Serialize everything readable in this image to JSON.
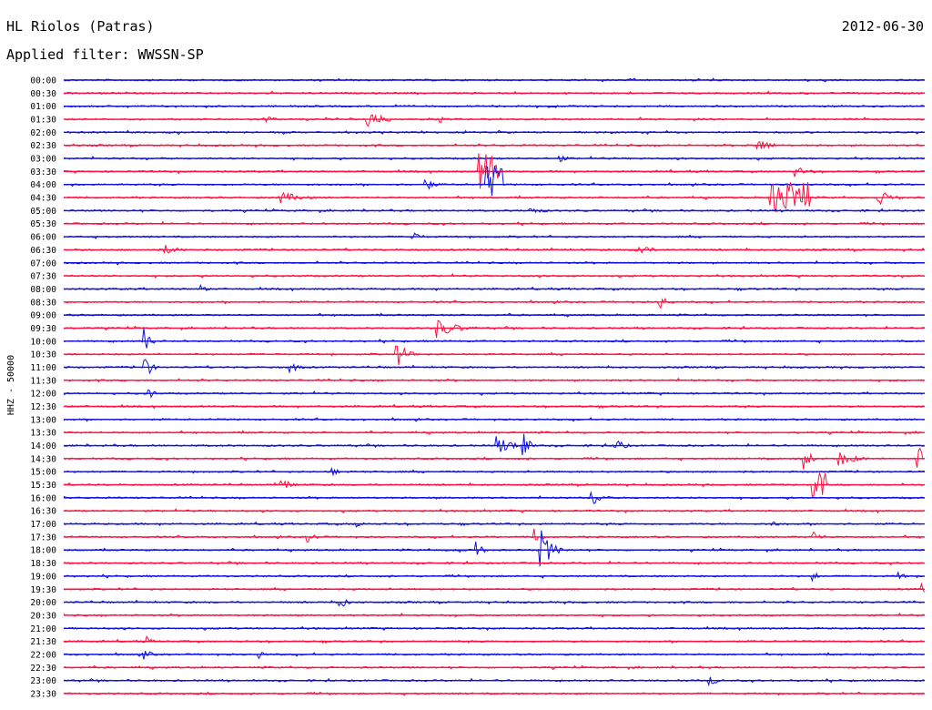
{
  "header": {
    "station": "HL Riolos (Patras)",
    "date": "2012-06-30",
    "filter": "Applied filter: WWSSN-SP"
  },
  "channel_label": "HHZ - 50000",
  "colors": {
    "blue": "#1010e0",
    "red": "#ff1040"
  },
  "chart_data": {
    "type": "line",
    "title": "HL Riolos (Patras)",
    "subtitle": "Applied filter: WWSSN-SP",
    "ylabel": "HHZ - 50000",
    "grid": false,
    "legend": "none",
    "y_tick_labels": [
      "00:00",
      "00:30",
      "01:00",
      "01:30",
      "02:00",
      "02:30",
      "03:00",
      "03:30",
      "04:00",
      "04:30",
      "05:00",
      "05:30",
      "06:00",
      "06:30",
      "07:00",
      "07:30",
      "08:00",
      "08:30",
      "09:00",
      "09:30",
      "10:00",
      "10:30",
      "11:00",
      "11:30",
      "12:00",
      "12:30",
      "13:00",
      "13:30",
      "14:00",
      "14:30",
      "15:00",
      "15:30",
      "16:00",
      "16:30",
      "17:00",
      "17:30",
      "18:00",
      "18:30",
      "19:00",
      "19:30",
      "20:00",
      "20:30",
      "21:00",
      "21:30",
      "22:00",
      "22:30",
      "23:00",
      "23:30"
    ],
    "trace_colors": [
      "blue",
      "red"
    ],
    "x_range_minutes": [
      0,
      30
    ],
    "events": [
      {
        "row": "01:30",
        "minute": 7.0,
        "amp": 0.5,
        "dur": 0.4
      },
      {
        "row": "01:30",
        "minute": 10.6,
        "amp": 1.0,
        "dur": 0.8
      },
      {
        "row": "01:30",
        "minute": 13.1,
        "amp": 0.4,
        "dur": 0.3
      },
      {
        "row": "02:30",
        "minute": 24.2,
        "amp": 0.8,
        "dur": 0.6
      },
      {
        "row": "03:00",
        "minute": 17.2,
        "amp": 0.4,
        "dur": 0.5
      },
      {
        "row": "03:30",
        "minute": 14.8,
        "amp": 1.6,
        "dur": 0.7,
        "burst": true
      },
      {
        "row": "03:30",
        "minute": 25.5,
        "amp": 0.5,
        "dur": 0.8
      },
      {
        "row": "04:00",
        "minute": 15.0,
        "amp": 1.6,
        "dur": 0.6,
        "burst": true
      },
      {
        "row": "04:00",
        "minute": 12.6,
        "amp": 0.6,
        "dur": 0.5
      },
      {
        "row": "04:30",
        "minute": 7.5,
        "amp": 0.6,
        "dur": 1.2
      },
      {
        "row": "04:30",
        "minute": 25.3,
        "amp": 1.4,
        "dur": 1.4,
        "burst": true
      },
      {
        "row": "04:30",
        "minute": 28.4,
        "amp": 0.7,
        "dur": 0.8
      },
      {
        "row": "05:00",
        "minute": 16.2,
        "amp": 0.4,
        "dur": 0.8
      },
      {
        "row": "06:00",
        "minute": 12.1,
        "amp": 0.7,
        "dur": 0.4
      },
      {
        "row": "06:30",
        "minute": 19.9,
        "amp": 0.9,
        "dur": 0.6
      },
      {
        "row": "06:30",
        "minute": 3.5,
        "amp": 0.5,
        "dur": 0.8
      },
      {
        "row": "08:00",
        "minute": 4.8,
        "amp": 0.6,
        "dur": 0.2
      },
      {
        "row": "08:30",
        "minute": 20.8,
        "amp": 0.7,
        "dur": 0.4
      },
      {
        "row": "09:30",
        "minute": 13.0,
        "amp": 0.9,
        "dur": 1.2
      },
      {
        "row": "10:00",
        "minute": 2.8,
        "amp": 1.8,
        "dur": 0.2
      },
      {
        "row": "10:30",
        "minute": 11.6,
        "amp": 1.2,
        "dur": 0.6
      },
      {
        "row": "11:00",
        "minute": 2.8,
        "amp": 1.4,
        "dur": 0.3
      },
      {
        "row": "11:00",
        "minute": 7.9,
        "amp": 0.5,
        "dur": 0.5
      },
      {
        "row": "12:00",
        "minute": 2.9,
        "amp": 1.2,
        "dur": 0.2
      },
      {
        "row": "14:00",
        "minute": 15.1,
        "amp": 0.9,
        "dur": 1.0
      },
      {
        "row": "14:00",
        "minute": 16.0,
        "amp": 2.0,
        "dur": 0.2
      },
      {
        "row": "14:00",
        "minute": 19.2,
        "amp": 0.9,
        "dur": 0.4
      },
      {
        "row": "14:30",
        "minute": 25.8,
        "amp": 1.3,
        "dur": 0.3
      },
      {
        "row": "14:30",
        "minute": 27.0,
        "amp": 0.7,
        "dur": 1.0
      },
      {
        "row": "14:30",
        "minute": 29.7,
        "amp": 2.0,
        "dur": 0.3
      },
      {
        "row": "15:00",
        "minute": 9.3,
        "amp": 0.5,
        "dur": 0.4
      },
      {
        "row": "15:30",
        "minute": 26.3,
        "amp": 1.1,
        "dur": 0.5,
        "burst": true
      },
      {
        "row": "15:30",
        "minute": 7.6,
        "amp": 0.6,
        "dur": 0.6
      },
      {
        "row": "16:00",
        "minute": 18.4,
        "amp": 0.9,
        "dur": 0.5
      },
      {
        "row": "17:00",
        "minute": 10.2,
        "amp": 0.5,
        "dur": 0.3
      },
      {
        "row": "17:00",
        "minute": 24.7,
        "amp": 0.5,
        "dur": 0.2
      },
      {
        "row": "17:30",
        "minute": 16.4,
        "amp": 1.3,
        "dur": 0.2
      },
      {
        "row": "17:30",
        "minute": 26.1,
        "amp": 0.7,
        "dur": 0.4
      },
      {
        "row": "17:30",
        "minute": 8.5,
        "amp": 0.5,
        "dur": 0.5
      },
      {
        "row": "18:00",
        "minute": 16.6,
        "amp": 2.0,
        "dur": 0.6
      },
      {
        "row": "18:00",
        "minute": 14.4,
        "amp": 1.2,
        "dur": 0.2
      },
      {
        "row": "18:00",
        "minute": 13.6,
        "amp": 0.6,
        "dur": 0.3
      },
      {
        "row": "19:00",
        "minute": 26.1,
        "amp": 0.6,
        "dur": 0.2
      },
      {
        "row": "19:00",
        "minute": 29.1,
        "amp": 0.4,
        "dur": 0.3
      },
      {
        "row": "19:30",
        "minute": 29.9,
        "amp": 0.6,
        "dur": 0.2
      },
      {
        "row": "20:00",
        "minute": 9.6,
        "amp": 0.9,
        "dur": 0.3
      },
      {
        "row": "21:30",
        "minute": 2.9,
        "amp": 0.5,
        "dur": 0.2
      },
      {
        "row": "22:00",
        "minute": 2.8,
        "amp": 0.5,
        "dur": 0.4
      },
      {
        "row": "22:00",
        "minute": 6.8,
        "amp": 0.5,
        "dur": 0.3
      },
      {
        "row": "23:00",
        "minute": 22.5,
        "amp": 0.5,
        "dur": 0.5
      }
    ]
  }
}
